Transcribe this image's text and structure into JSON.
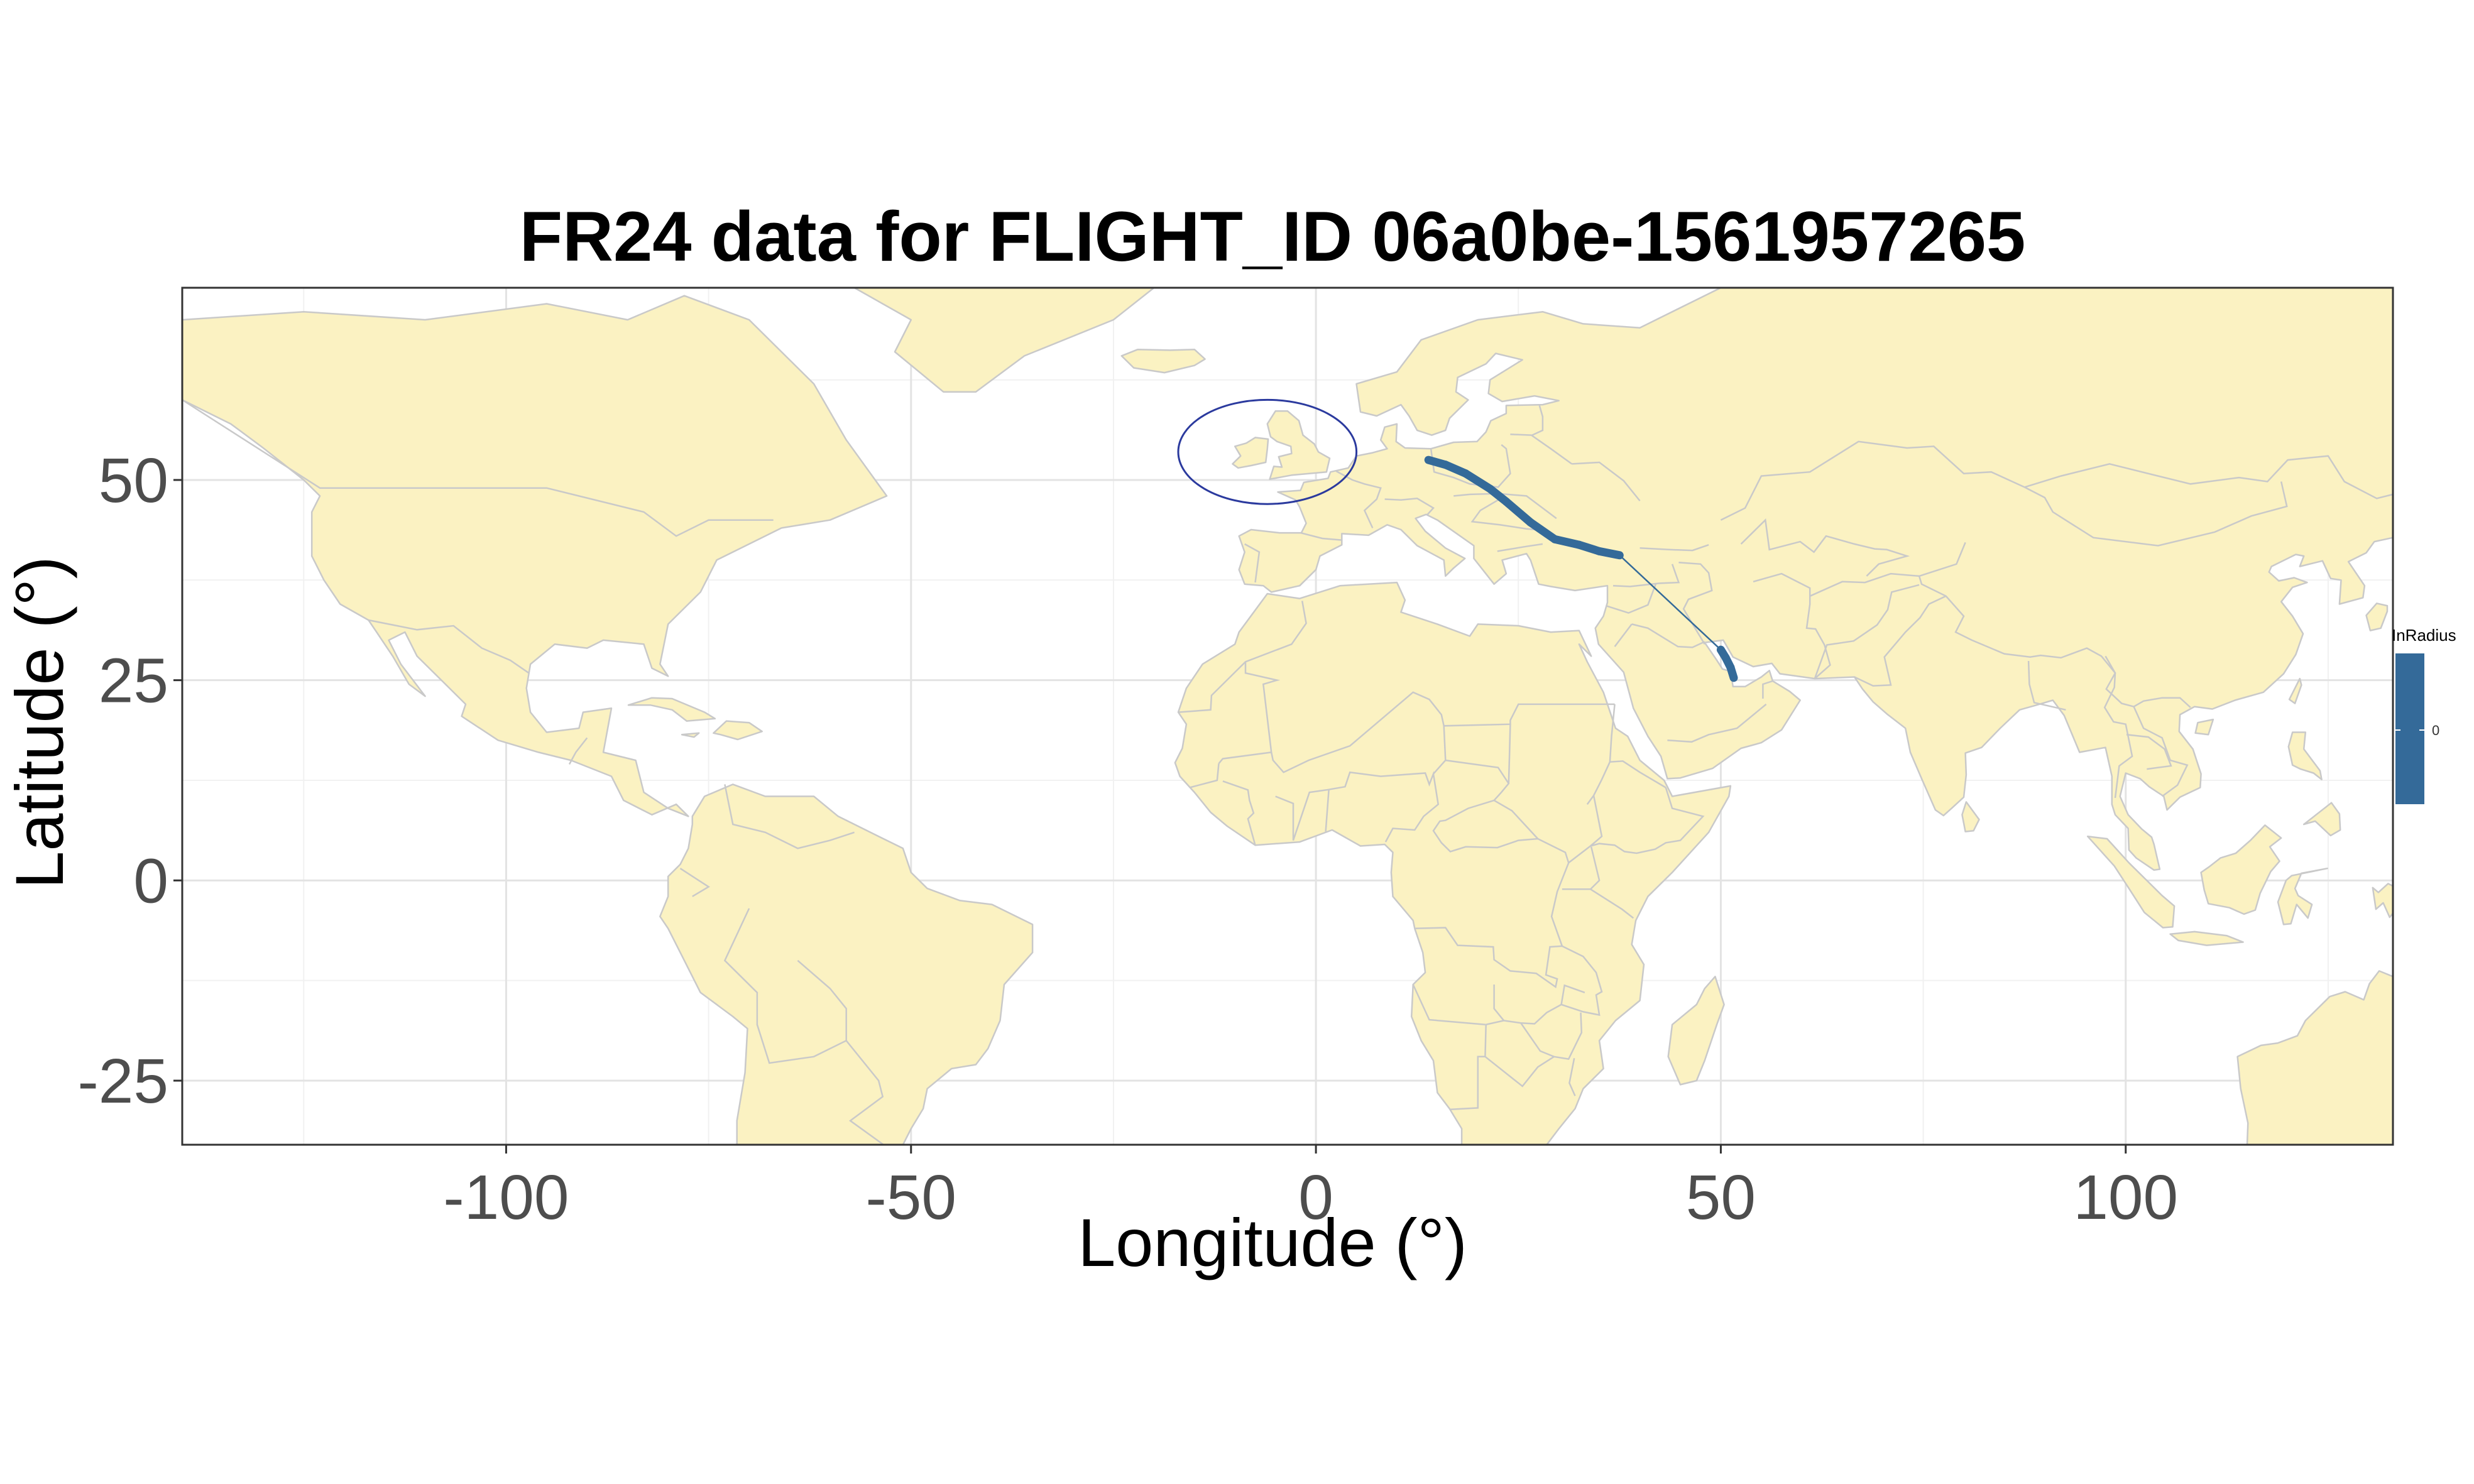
{
  "chart_data": {
    "type": "map",
    "title": "FR24 data for FLIGHT_ID 06a0be-1561957265",
    "xlabel": "Longitude (°)",
    "ylabel": "Latitude (°)",
    "xlim": [
      -140,
      133
    ],
    "ylim": [
      -33,
      74
    ],
    "x_ticks": [
      -100,
      -50,
      0,
      50,
      100
    ],
    "x_tick_labels": [
      "-100",
      "-50",
      "0",
      "50",
      "100"
    ],
    "y_ticks": [
      -25,
      0,
      25,
      50
    ],
    "y_tick_labels": [
      "-25",
      "0",
      "25",
      "50"
    ],
    "grid": true,
    "land_color": "#fbf2c2",
    "border_color": "#c9c9c9",
    "track": {
      "color": "#346a99",
      "points": [
        [
          13.9,
          52.5
        ],
        [
          16.0,
          51.9
        ],
        [
          18.5,
          50.8
        ],
        [
          21.5,
          48.9
        ],
        [
          23.5,
          47.3
        ],
        [
          26.5,
          44.7
        ],
        [
          29.5,
          42.6
        ],
        [
          32.5,
          41.9
        ],
        [
          35.0,
          41.1
        ],
        [
          37.5,
          40.6
        ],
        [
          50.0,
          28.8
        ],
        [
          50.6,
          27.8
        ],
        [
          51.2,
          26.6
        ],
        [
          51.6,
          25.3
        ]
      ],
      "thin_segments": [
        [
          9,
          10
        ]
      ]
    },
    "highlight_ellipse": {
      "center": [
        -6,
        53.5
      ],
      "radius_lon": 11,
      "radius_lat": 6.5,
      "color": "#2b3a9e"
    },
    "legend": {
      "title": "InRadius",
      "labels": [
        "0"
      ],
      "color": "#346a99",
      "position": "right"
    }
  }
}
